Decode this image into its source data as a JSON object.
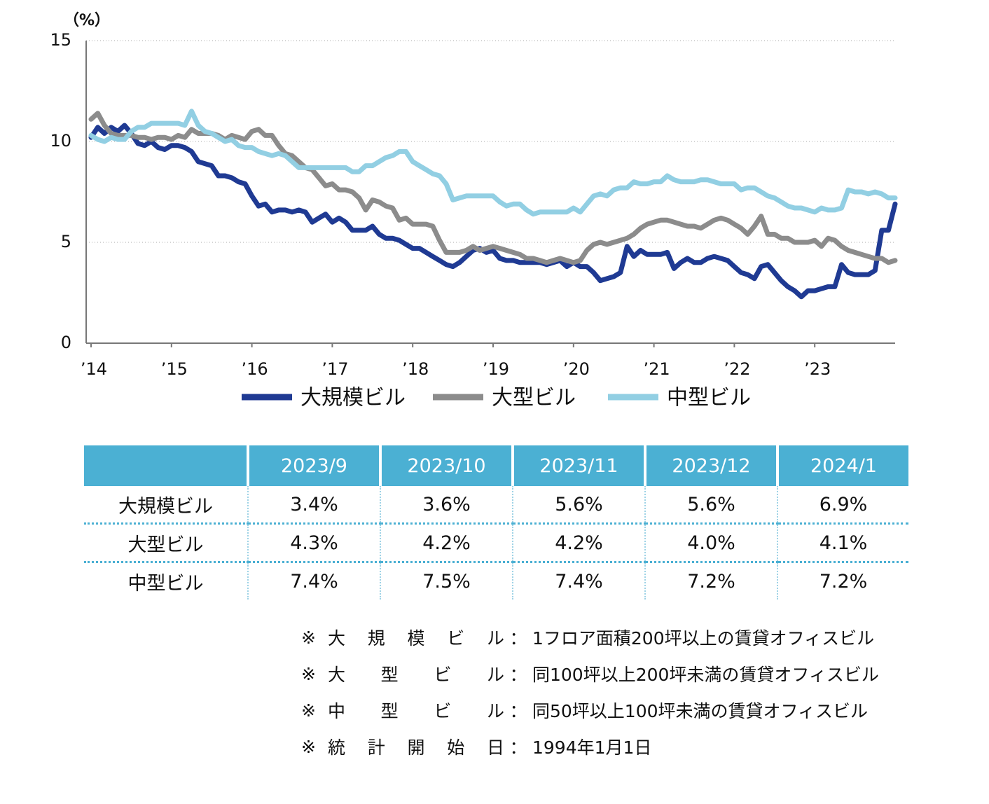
{
  "chart_data": {
    "type": "line",
    "y_label": "（%）",
    "categories": [
      "’14",
      null,
      null,
      null,
      null,
      null,
      null,
      null,
      null,
      null,
      null,
      null,
      "’15",
      null,
      null,
      null,
      null,
      null,
      null,
      null,
      null,
      null,
      null,
      null,
      "’16",
      null,
      null,
      null,
      null,
      null,
      null,
      null,
      null,
      null,
      null,
      null,
      "’17",
      null,
      null,
      null,
      null,
      null,
      null,
      null,
      null,
      null,
      null,
      null,
      "’18",
      null,
      null,
      null,
      null,
      null,
      null,
      null,
      null,
      null,
      null,
      null,
      "’19",
      null,
      null,
      null,
      null,
      null,
      null,
      null,
      null,
      null,
      null,
      null,
      "’20",
      null,
      null,
      null,
      null,
      null,
      null,
      null,
      null,
      null,
      null,
      null,
      "’21",
      null,
      null,
      null,
      null,
      null,
      null,
      null,
      null,
      null,
      null,
      null,
      "’22",
      null,
      null,
      null,
      null,
      null,
      null,
      null,
      null,
      null,
      null,
      null,
      "’23",
      null,
      null,
      null,
      null,
      null,
      null,
      null,
      null,
      null,
      null,
      null,
      null
    ],
    "series": [
      {
        "name": "大規模ビル",
        "color": "#1f3a93",
        "values": [
          10.2,
          10.7,
          10.4,
          10.7,
          10.5,
          10.8,
          10.4,
          9.9,
          9.8,
          10.0,
          9.7,
          9.6,
          9.8,
          9.8,
          9.7,
          9.5,
          9.0,
          8.9,
          8.8,
          8.3,
          8.3,
          8.2,
          8.0,
          7.9,
          7.3,
          6.8,
          6.9,
          6.5,
          6.6,
          6.6,
          6.5,
          6.6,
          6.5,
          6.0,
          6.2,
          6.4,
          6.0,
          6.2,
          6.0,
          5.6,
          5.6,
          5.6,
          5.8,
          5.4,
          5.2,
          5.2,
          5.1,
          4.9,
          4.7,
          4.7,
          4.5,
          4.3,
          4.1,
          3.9,
          3.8,
          4.0,
          4.3,
          4.6,
          4.7,
          4.5,
          4.6,
          4.2,
          4.1,
          4.1,
          4.0,
          4.0,
          4.0,
          4.0,
          3.9,
          4.0,
          4.1,
          3.8,
          4.0,
          3.8,
          3.8,
          3.5,
          3.1,
          3.2,
          3.3,
          3.5,
          4.8,
          4.3,
          4.6,
          4.4,
          4.4,
          4.4,
          4.5,
          3.7,
          4.0,
          4.2,
          4.0,
          4.0,
          4.2,
          4.3,
          4.2,
          4.1,
          3.8,
          3.5,
          3.4,
          3.2,
          3.8,
          3.9,
          3.5,
          3.1,
          2.8,
          2.6,
          2.3,
          2.6,
          2.6,
          2.7,
          2.8,
          2.8,
          3.9,
          3.5,
          3.4,
          3.4,
          3.4,
          3.6,
          5.6,
          5.6,
          6.9
        ]
      },
      {
        "name": "大型ビル",
        "color": "#8c8c8c",
        "values": [
          11.1,
          11.4,
          10.8,
          10.4,
          10.3,
          10.3,
          10.3,
          10.2,
          10.2,
          10.1,
          10.2,
          10.2,
          10.1,
          10.3,
          10.2,
          10.6,
          10.4,
          10.4,
          10.4,
          10.3,
          10.1,
          10.3,
          10.2,
          10.1,
          10.5,
          10.6,
          10.3,
          10.3,
          9.8,
          9.4,
          9.3,
          9.0,
          8.7,
          8.6,
          8.2,
          7.8,
          7.9,
          7.6,
          7.6,
          7.5,
          7.2,
          6.6,
          7.1,
          7.0,
          6.8,
          6.7,
          6.1,
          6.2,
          5.9,
          5.9,
          5.9,
          5.8,
          5.1,
          4.5,
          4.5,
          4.5,
          4.6,
          4.8,
          4.6,
          4.7,
          4.8,
          4.7,
          4.6,
          4.5,
          4.4,
          4.2,
          4.2,
          4.1,
          4.0,
          4.1,
          4.2,
          4.1,
          4.0,
          4.1,
          4.6,
          4.9,
          5.0,
          4.9,
          5.0,
          5.1,
          5.2,
          5.4,
          5.7,
          5.9,
          6.0,
          6.1,
          6.1,
          6.0,
          5.9,
          5.8,
          5.8,
          5.7,
          5.9,
          6.1,
          6.2,
          6.1,
          5.9,
          5.7,
          5.4,
          5.8,
          6.3,
          5.4,
          5.4,
          5.2,
          5.2,
          5.0,
          5.0,
          5.0,
          5.1,
          4.8,
          5.2,
          5.1,
          4.8,
          4.6,
          4.5,
          4.4,
          4.3,
          4.2,
          4.2,
          4.0,
          4.1
        ]
      },
      {
        "name": "中型ビル",
        "color": "#92cfe3",
        "values": [
          10.3,
          10.1,
          10.0,
          10.2,
          10.1,
          10.1,
          10.5,
          10.7,
          10.7,
          10.9,
          10.9,
          10.9,
          10.9,
          10.9,
          10.8,
          11.5,
          10.8,
          10.5,
          10.4,
          10.2,
          10.0,
          10.1,
          9.8,
          9.7,
          9.7,
          9.5,
          9.4,
          9.3,
          9.4,
          9.3,
          9.0,
          8.7,
          8.7,
          8.7,
          8.7,
          8.7,
          8.7,
          8.7,
          8.7,
          8.5,
          8.5,
          8.8,
          8.8,
          9.0,
          9.2,
          9.3,
          9.5,
          9.5,
          9.0,
          8.8,
          8.6,
          8.4,
          8.3,
          7.9,
          7.1,
          7.2,
          7.3,
          7.3,
          7.3,
          7.3,
          7.3,
          7.0,
          6.8,
          6.9,
          6.9,
          6.6,
          6.4,
          6.5,
          6.5,
          6.5,
          6.5,
          6.5,
          6.7,
          6.5,
          6.9,
          7.3,
          7.4,
          7.3,
          7.6,
          7.7,
          7.7,
          8.0,
          7.9,
          7.9,
          8.0,
          8.0,
          8.3,
          8.1,
          8.0,
          8.0,
          8.0,
          8.1,
          8.1,
          8.0,
          7.9,
          7.9,
          7.9,
          7.6,
          7.7,
          7.7,
          7.5,
          7.3,
          7.2,
          7.0,
          6.8,
          6.7,
          6.7,
          6.6,
          6.5,
          6.7,
          6.6,
          6.6,
          6.7,
          7.6,
          7.5,
          7.5,
          7.4,
          7.5,
          7.4,
          7.2,
          7.2
        ]
      }
    ],
    "ylim": [
      0,
      15
    ],
    "yticks": [
      0,
      5,
      10,
      15
    ],
    "grid": true,
    "legend": "bottom"
  },
  "table": {
    "columns": [
      "2023/9",
      "2023/10",
      "2023/11",
      "2023/12",
      "2024/1"
    ],
    "rows": [
      {
        "label": "大規模ビル",
        "cells": [
          "3.4%",
          "3.6%",
          "5.6%",
          "5.6%",
          "6.9%"
        ]
      },
      {
        "label": "大型ビル",
        "cells": [
          "4.3%",
          "4.2%",
          "4.2%",
          "4.0%",
          "4.1%"
        ]
      },
      {
        "label": "中型ビル",
        "cells": [
          "7.4%",
          "7.5%",
          "7.4%",
          "7.2%",
          "7.2%"
        ]
      }
    ]
  },
  "notes": [
    {
      "mark": "※",
      "term": "大規模ビル",
      "colon": "：",
      "text": "1フロア面積200坪以上の賃貸オフィスビル"
    },
    {
      "mark": "※",
      "term": "大型ビル",
      "colon": "：",
      "text": "同100坪以上200坪未満の賃貸オフィスビル"
    },
    {
      "mark": "※",
      "term": "中型ビル",
      "colon": "：",
      "text": "同50坪以上100坪未満の賃貸オフィスビル"
    },
    {
      "mark": "※",
      "term": "統計開始日",
      "colon": "：",
      "text": "1994年1月1日"
    }
  ]
}
